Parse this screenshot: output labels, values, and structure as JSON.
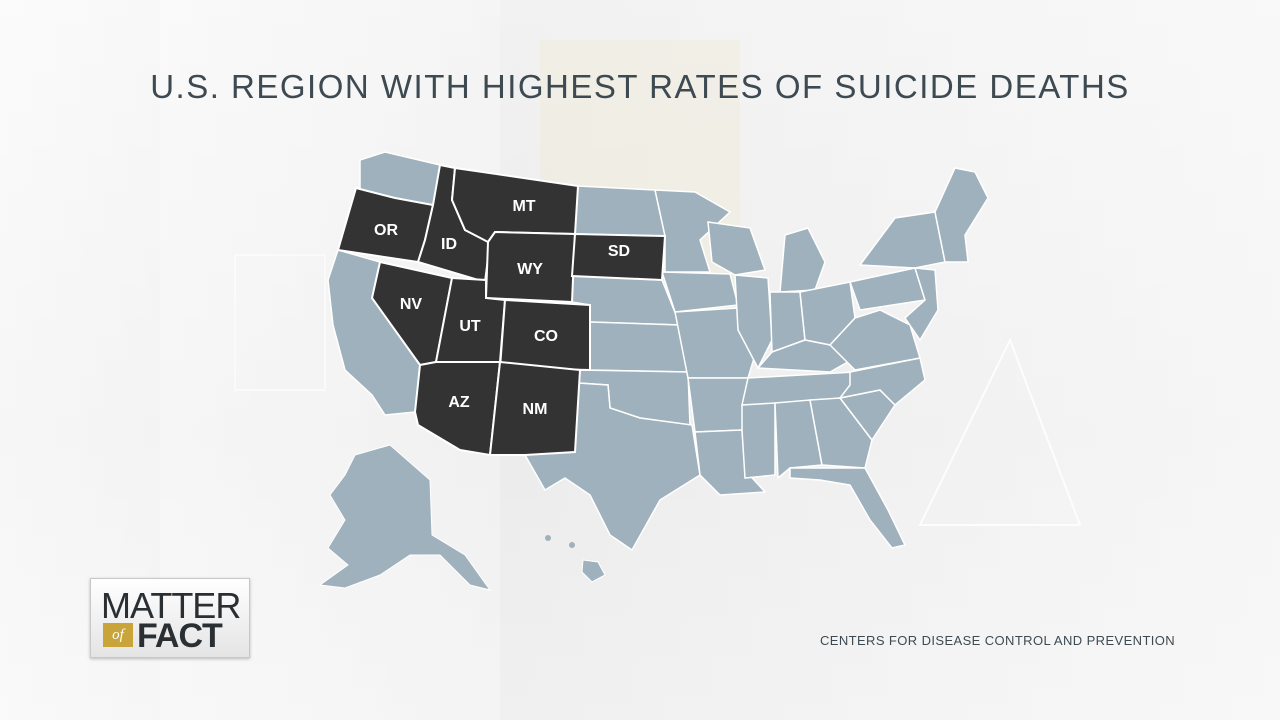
{
  "title": "U.S. REGION WITH HIGHEST RATES OF SUICIDE DEATHS",
  "source": "CENTERS FOR DISEASE CONTROL AND PREVENTION",
  "logo": {
    "line1": "MATTER",
    "of": "of",
    "line2": "FACT"
  },
  "colors": {
    "highlight": "#333333",
    "base": "#9fb1bc",
    "border": "#ffffff",
    "title": "#3e4a52",
    "logo_accent": "#c8a43a"
  },
  "highlighted_states": [
    {
      "code": "OR",
      "label": "OR"
    },
    {
      "code": "ID",
      "label": "ID"
    },
    {
      "code": "MT",
      "label": "MT"
    },
    {
      "code": "WY",
      "label": "WY"
    },
    {
      "code": "SD",
      "label": "SD"
    },
    {
      "code": "NV",
      "label": "NV"
    },
    {
      "code": "UT",
      "label": "UT"
    },
    {
      "code": "CO",
      "label": "CO"
    },
    {
      "code": "AZ",
      "label": "AZ"
    },
    {
      "code": "NM",
      "label": "NM"
    }
  ]
}
